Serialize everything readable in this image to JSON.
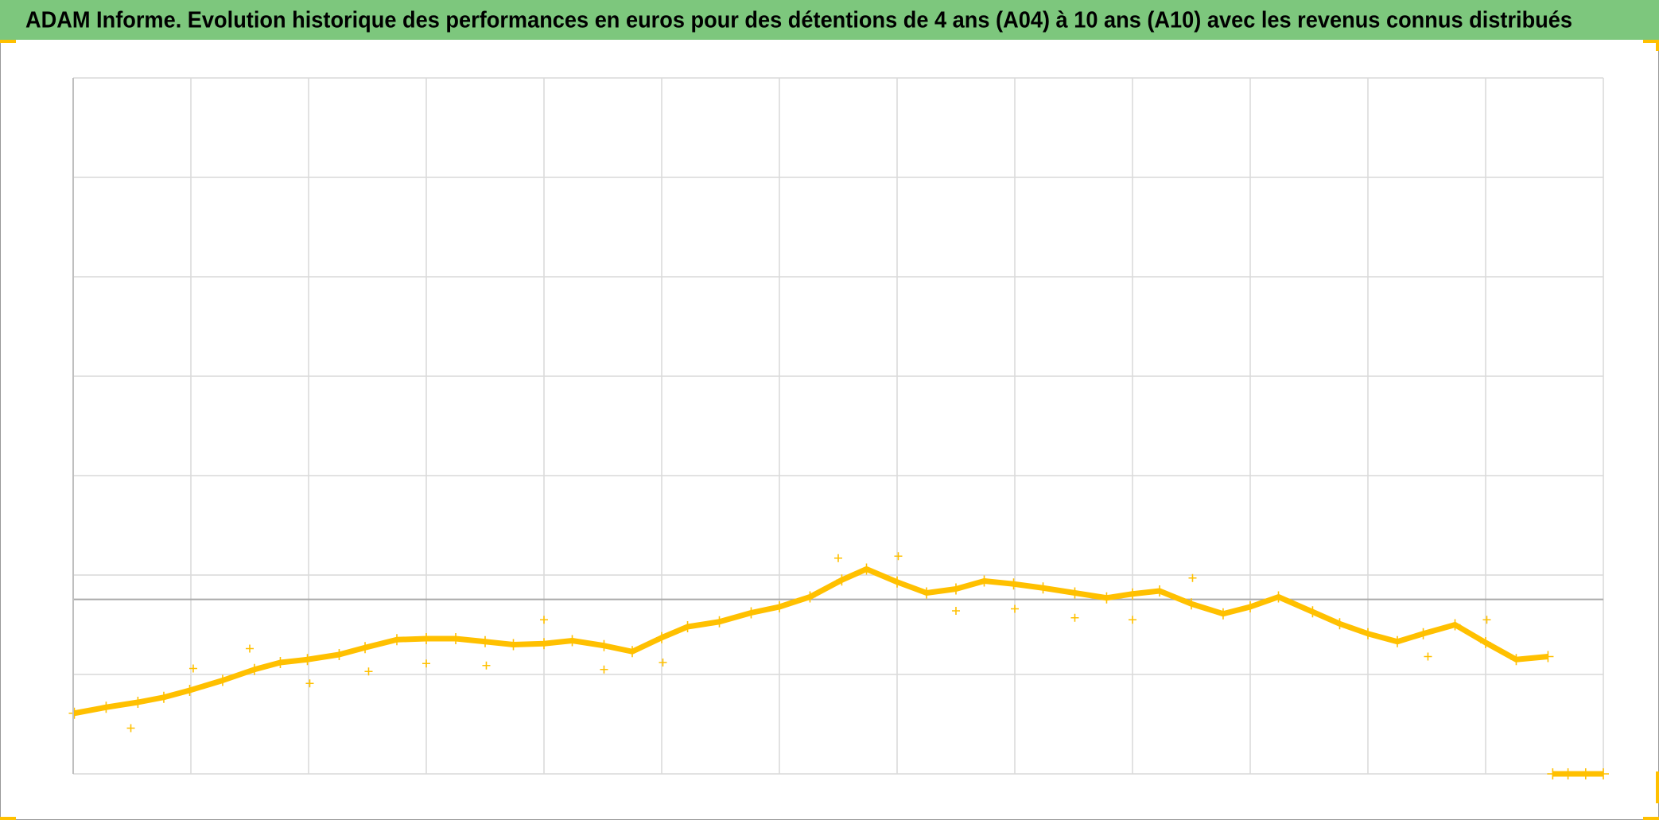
{
  "chart_data": {
    "type": "scatter",
    "title": "ADAM Informe. Evolution historique des performances en euros pour des détentions de 4 ans (A04) à 10 ans (A10) avec les revenus connus distribués",
    "xlim": [
      0,
      13
    ],
    "xticks": [
      0,
      1,
      2,
      3,
      4,
      5,
      6,
      7,
      8,
      9,
      10,
      11,
      12,
      13
    ],
    "ylim": [
      0,
      7
    ],
    "yticks": [
      0,
      1,
      2,
      3,
      4,
      5,
      6,
      7
    ],
    "grid": true,
    "hline": 1.755,
    "series": [
      {
        "color": "#ffc000",
        "connected": true,
        "x": [
          0.01,
          0.28,
          0.55,
          0.77,
          0.99,
          1.27,
          1.54,
          1.76,
          1.99,
          2.26,
          2.48,
          2.75,
          3.0,
          3.25,
          3.5,
          3.74,
          4.0,
          4.24,
          4.51,
          4.75,
          5.0,
          5.22,
          5.49,
          5.76,
          6.0,
          6.26,
          6.53,
          6.74,
          7.0,
          7.25,
          7.5,
          7.74,
          7.99,
          8.24,
          8.51,
          8.78,
          9.0,
          9.23,
          9.5,
          9.77,
          10.0,
          10.24,
          10.53,
          10.76,
          11.0,
          11.25,
          11.47,
          11.74,
          12.0,
          12.26,
          12.53,
          12.55,
          12.57,
          12.7,
          12.85,
          13.0
        ],
        "values": [
          0.61,
          0.67,
          0.72,
          0.77,
          0.84,
          0.94,
          1.05,
          1.12,
          1.15,
          1.2,
          1.27,
          1.35,
          1.36,
          1.36,
          1.33,
          1.3,
          1.31,
          1.34,
          1.29,
          1.23,
          1.37,
          1.48,
          1.53,
          1.62,
          1.68,
          1.78,
          1.95,
          2.06,
          1.93,
          1.82,
          1.86,
          1.94,
          1.91,
          1.87,
          1.82,
          1.77,
          1.81,
          1.84,
          1.71,
          1.61,
          1.68,
          1.78,
          1.63,
          1.51,
          1.41,
          1.33,
          1.41,
          1.5,
          1.32,
          1.15,
          1.18,
          null,
          0,
          0,
          0,
          0
        ]
      },
      {
        "color": "#ffc000",
        "x": [
          0.49,
          1.02,
          1.5,
          2.01,
          2.51,
          3.0,
          3.51,
          4.0,
          4.51,
          5.01,
          6.5,
          7.01,
          7.5,
          8.0,
          8.51,
          9.0,
          9.51,
          11.51,
          12.01
        ],
        "values": [
          0.46,
          1.06,
          1.26,
          0.91,
          1.03,
          1.11,
          1.09,
          1.55,
          1.05,
          1.12,
          2.17,
          2.19,
          1.64,
          1.66,
          1.57,
          1.55,
          1.97,
          1.18,
          1.55
        ]
      }
    ]
  }
}
